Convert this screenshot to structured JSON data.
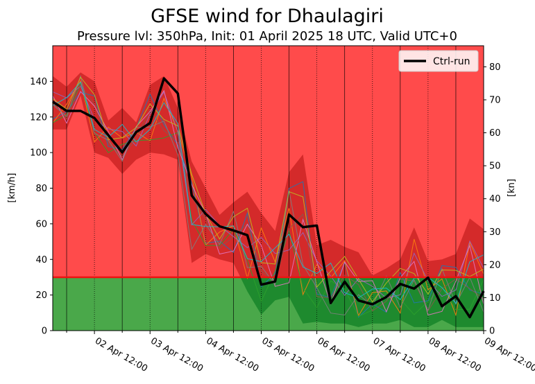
{
  "chart_data": {
    "type": "line",
    "title": "GFSE wind for Dhaulagiri",
    "subtitle": "Pressure lvl: 350hPa, Init: 01 April 2025 18 UTC, Valid UTC+0",
    "ylabel_left": "[km/h]",
    "ylabel_right": "[kn]",
    "x_tick_labels": [
      "02 Apr 12:00",
      "03 Apr 12:00",
      "04 Apr 12:00",
      "05 Apr 12:00",
      "06 Apr 12:00",
      "07 Apr 12:00",
      "08 Apr 12:00",
      "09 Apr 12:00"
    ],
    "x_start": "2025-04-01 18:00",
    "x_step_hours": 6,
    "x_end": "2025-04-09 12:00",
    "ylim": [
      0,
      160
    ],
    "y_ticks_left": [
      0,
      20,
      40,
      60,
      80,
      100,
      120,
      140
    ],
    "y_ticks_right": [
      0,
      10,
      20,
      30,
      40,
      50,
      60,
      70,
      80
    ],
    "threshold": 30,
    "threshold_color": "#ee1111",
    "zone_above_color": "#ff4b4b",
    "zone_below_color": "#4aa84a",
    "envelope_above_color": "#d42a2a",
    "envelope_below_color": "#1e8a2e",
    "legend": {
      "position": "top-right",
      "entries": [
        {
          "label": "Ctrl-run",
          "color": "#000000"
        }
      ]
    },
    "ensemble_colors": [
      "#1f77b4",
      "#ff7f0e",
      "#2ca02c",
      "#9467bd",
      "#8c564b",
      "#e377c2",
      "#7f7f7f",
      "#bcbd22",
      "#17becf"
    ],
    "ensemble_min": [
      113,
      113,
      132,
      100,
      97,
      88,
      96,
      100,
      99,
      96,
      38,
      43,
      40,
      38,
      22,
      9,
      17,
      19,
      4,
      5,
      4,
      4,
      2,
      4,
      4,
      6,
      2,
      2,
      6,
      2,
      2,
      2
    ],
    "ensemble_max": [
      143,
      137,
      145,
      140,
      118,
      125,
      117,
      138,
      143,
      125,
      95,
      80,
      65,
      72,
      78,
      66,
      56,
      89,
      99,
      48,
      51,
      47,
      44,
      31,
      35,
      40,
      58,
      39,
      40,
      43,
      63,
      57
    ],
    "series": [
      {
        "name": "Ctrl-run",
        "values": [
          128.6,
          123.4,
          123.4,
          119.4,
          109.8,
          100.1,
          111.5,
          116.6,
          141.7,
          133.2,
          75.9,
          65.5,
          58.6,
          56.3,
          53.6,
          25.8,
          27.6,
          65.2,
          58.1,
          59.0,
          15.5,
          27.5,
          16.9,
          14.8,
          18.9,
          26.2,
          23.6,
          29.8,
          13.7,
          19.4,
          7.6,
          22.2
        ]
      }
    ]
  }
}
